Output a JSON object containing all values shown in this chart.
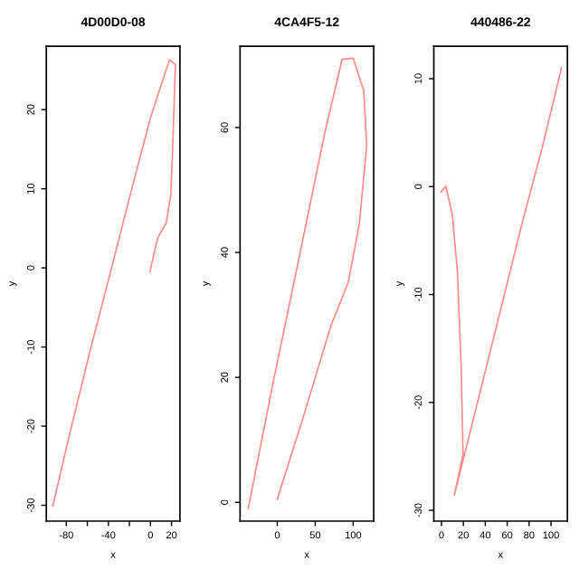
{
  "chart_data": [
    {
      "type": "line",
      "title": "4D00D0-08",
      "xlabel": "x",
      "ylabel": "y",
      "xlim": [
        -99,
        28
      ],
      "ylim": [
        -32,
        28
      ],
      "xticks": [
        -80,
        {
          "value": -60,
          "label": null
        },
        -40,
        {
          "value": -20,
          "label": null
        },
        0,
        20
      ],
      "yticks": [
        -30,
        -20,
        -10,
        0,
        10,
        20
      ],
      "grid": false,
      "legend": false,
      "marker": "none",
      "line_style": "solid",
      "series": [
        {
          "color": "#ff8a8a",
          "x": [
            -92.9,
            -76.1,
            -58.0,
            -38.7,
            -19.3,
            0,
            18.1,
            23.7,
            21.1,
            19.3,
            15.0,
            6.9,
            -0.6
          ],
          "values": [
            -30.1,
            -20.6,
            -10.8,
            -0.9,
            9.2,
            19.0,
            26.3,
            25.7,
            15.1,
            9.2,
            5.7,
            3.8,
            -0.5
          ]
        }
      ]
    },
    {
      "type": "line",
      "title": "4CA4F5-12",
      "xlabel": "x",
      "ylabel": "y",
      "xlim": [
        -49,
        127
      ],
      "ylim": [
        -3,
        73
      ],
      "xticks": [
        0,
        50,
        100
      ],
      "yticks": [
        0,
        20,
        40,
        60
      ],
      "grid": false,
      "legend": false,
      "marker": "none",
      "line_style": "solid",
      "series": [
        {
          "color": "#ff8a8a",
          "x": [
            -38.3,
            -5.6,
            28.5,
            62.7,
            85.4,
            100,
            113.9,
            117.8,
            108.1,
            93.5,
            70.8,
            34.9,
            0
          ],
          "values": [
            -1.0,
            19.1,
            39.0,
            59.2,
            70.9,
            71.1,
            65.9,
            57.1,
            44.6,
            35.2,
            28.3,
            13.9,
            0.5
          ]
        }
      ]
    },
    {
      "type": "line",
      "title": "440486-22",
      "xlabel": "x",
      "ylabel": "y",
      "xlim": [
        -7,
        115
      ],
      "ylim": [
        -31,
        13
      ],
      "xticks": [
        0,
        20,
        40,
        60,
        80,
        100
      ],
      "yticks": [
        -30,
        -20,
        -10,
        0,
        10
      ],
      "grid": false,
      "legend": false,
      "marker": "none",
      "line_style": "solid",
      "series": [
        {
          "color": "#ff8a8a",
          "x": [
            -0.5,
            4.0,
            9.9,
            14.5,
            18.0,
            19.7,
            11.7,
            22.1,
            38.8,
            56.2,
            73.6,
            92.2,
            109.6
          ],
          "values": [
            -0.5,
            0.05,
            -2.6,
            -7.8,
            -16.8,
            -24.8,
            -28.6,
            -24.4,
            -17.6,
            -10.5,
            -3.4,
            3.7,
            11.0
          ]
        }
      ]
    }
  ]
}
